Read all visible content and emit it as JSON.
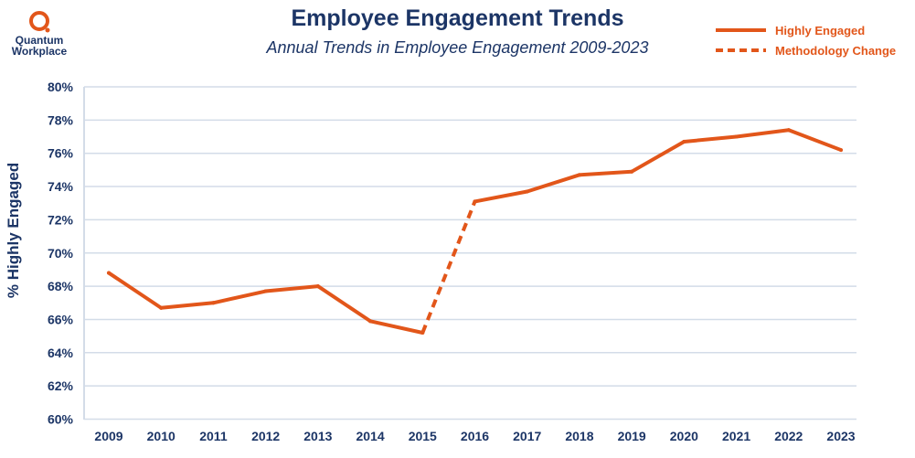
{
  "logo": {
    "line1": "Quantum",
    "line2": "Workplace"
  },
  "chart_data": {
    "type": "line",
    "title": "Employee Engagement Trends",
    "subtitle": "Annual Trends in Employee Engagement 2009-2023",
    "xlabel": "",
    "ylabel": "% Highly Engaged",
    "categories": [
      "2009",
      "2010",
      "2011",
      "2012",
      "2013",
      "2014",
      "2015",
      "2016",
      "2017",
      "2018",
      "2019",
      "2020",
      "2021",
      "2022",
      "2023"
    ],
    "series": [
      {
        "name": "Highly Engaged",
        "values": [
          68.8,
          66.7,
          67.0,
          67.7,
          68.0,
          65.9,
          65.2,
          73.1,
          73.7,
          74.7,
          74.9,
          76.7,
          77.0,
          77.4,
          76.2
        ]
      }
    ],
    "dashed_segment": {
      "name": "Methodology Change",
      "from": "2015",
      "to": "2016"
    },
    "ylim": [
      60,
      80
    ],
    "yticks": [
      60,
      62,
      64,
      66,
      68,
      70,
      72,
      74,
      76,
      78,
      80
    ],
    "ytick_format": "%",
    "grid": true,
    "legend": "top-right",
    "colors": {
      "line": "#e2561a",
      "text": "#1c3566",
      "grid": "#d3dce8"
    }
  }
}
